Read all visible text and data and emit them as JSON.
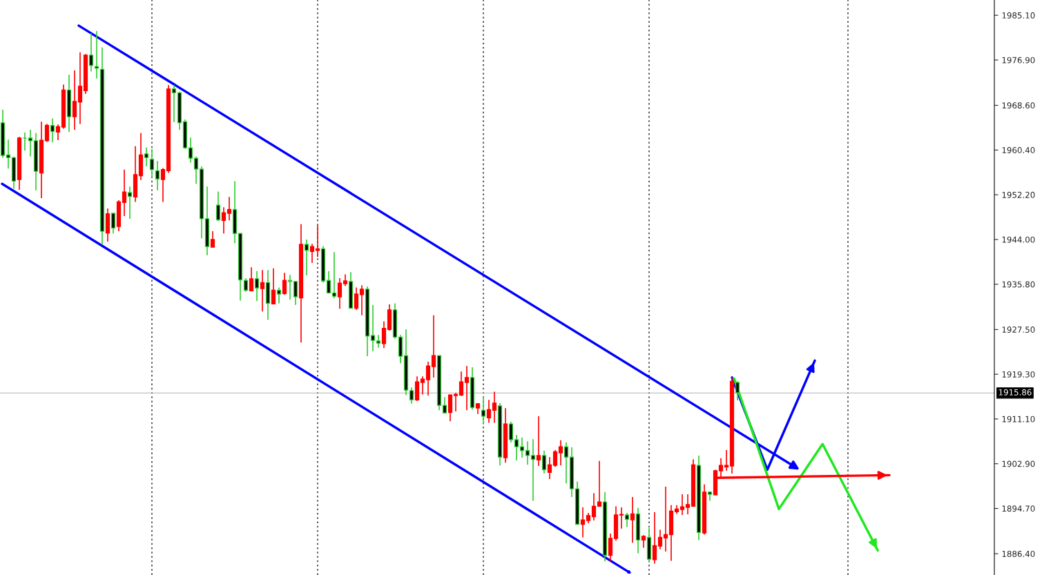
{
  "chart_data": {
    "type": "candlestick",
    "categories": [
      null,
      null,
      null,
      null,
      null,
      null,
      null,
      null,
      null,
      null,
      null,
      null,
      null,
      null,
      null,
      null,
      null,
      null,
      null,
      null,
      null,
      null,
      null,
      null,
      null,
      null,
      null,
      null,
      null,
      null,
      null,
      null,
      null,
      null,
      null,
      null,
      null,
      null,
      null,
      null,
      null,
      null,
      null,
      null,
      null,
      null,
      null,
      null,
      null,
      null,
      null,
      null,
      null,
      null,
      null,
      null,
      null,
      null,
      null,
      null,
      null,
      null,
      null,
      null,
      null,
      null,
      null,
      null,
      null,
      null,
      null,
      null,
      null,
      null,
      null,
      null,
      null,
      null,
      null,
      null,
      null,
      null,
      null,
      null,
      null,
      null,
      null,
      null,
      null,
      null,
      null,
      null,
      null,
      null,
      null,
      null,
      null,
      null,
      null,
      null,
      null,
      null,
      null,
      null,
      null,
      null,
      null,
      null,
      null,
      null,
      null,
      null,
      null,
      null,
      null,
      null,
      null,
      null,
      null,
      null,
      null,
      null,
      null,
      null,
      null,
      null,
      null,
      null,
      null,
      null,
      null,
      null,
      null,
      null,
      null,
      null,
      null,
      null,
      null,
      null,
      null,
      null,
      null,
      null,
      null,
      null,
      null,
      null,
      null,
      null,
      null,
      null,
      null,
      null,
      null,
      null,
      null,
      null,
      null,
      null,
      null,
      null,
      null,
      null,
      null,
      null,
      null,
      null,
      null,
      null,
      null,
      null,
      null,
      null,
      null,
      null,
      null,
      null,
      null,
      null
    ],
    "ohlc": [
      [
        1965.4,
        1967.8,
        1959.0,
        1959.4
      ],
      [
        1959.5,
        1962.3,
        1957.0,
        1959.0
      ],
      [
        1959.0,
        1959.2,
        1953.3,
        1954.7
      ],
      [
        1955.0,
        1962.8,
        1953.1,
        1962.6
      ],
      [
        1962.6,
        1963.6,
        1960.3,
        1962.6
      ],
      [
        1962.6,
        1964.1,
        1959.2,
        1962.1
      ],
      [
        1962.1,
        1963.5,
        1953.0,
        1956.5
      ],
      [
        1956.2,
        1965.6,
        1951.6,
        1962.2
      ],
      [
        1962.1,
        1965.2,
        1961.9,
        1964.9
      ],
      [
        1964.9,
        1966.2,
        1961.8,
        1963.8
      ],
      [
        1963.7,
        1965.1,
        1962.2,
        1964.7
      ],
      [
        1964.6,
        1972.4,
        1964.3,
        1971.4
      ],
      [
        1971.4,
        1974.2,
        1963.7,
        1966.5
      ],
      [
        1966.5,
        1975.0,
        1964.1,
        1969.3
      ],
      [
        1969.2,
        1978.3,
        1965.2,
        1972.1
      ],
      [
        1971.3,
        1978.0,
        1970.7,
        1977.8
      ],
      [
        1977.8,
        1981.8,
        1974.8,
        1975.9
      ],
      [
        1975.7,
        1982.2,
        1973.5,
        1975.4
      ],
      [
        1975.2,
        1979.2,
        1943.0,
        1945.5
      ],
      [
        1945.2,
        1949.7,
        1943.6,
        1948.7
      ],
      [
        1948.8,
        1948.9,
        1945.1,
        1946.1
      ],
      [
        1946.4,
        1951.2,
        1945.5,
        1950.9
      ],
      [
        1950.8,
        1956.8,
        1948.3,
        1952.7
      ],
      [
        1952.6,
        1953.7,
        1947.8,
        1951.9
      ],
      [
        1951.8,
        1961.1,
        1950.9,
        1955.9
      ],
      [
        1955.7,
        1963.5,
        1954.9,
        1959.5
      ],
      [
        1959.7,
        1960.9,
        1957.4,
        1959.0
      ],
      [
        1958.7,
        1960.6,
        1955.4,
        1956.8
      ],
      [
        1956.6,
        1958.4,
        1953.0,
        1955.1
      ],
      [
        1955.0,
        1957.1,
        1950.9,
        1956.8
      ],
      [
        1956.6,
        1972.3,
        1956.2,
        1971.6
      ],
      [
        1971.6,
        1972.3,
        1965.5,
        1970.9
      ],
      [
        1970.9,
        1971.1,
        1964.1,
        1965.4
      ],
      [
        1965.6,
        1966.0,
        1960.6,
        1960.8
      ],
      [
        1960.8,
        1962.7,
        1958.1,
        1958.9
      ],
      [
        1958.9,
        1959.2,
        1954.2,
        1956.9
      ],
      [
        1956.9,
        1957.4,
        1944.2,
        1947.8
      ],
      [
        1947.8,
        1953.7,
        1941.1,
        1942.7
      ],
      [
        1942.6,
        1945.5,
        1942.6,
        1944.0
      ],
      [
        1950.3,
        1952.8,
        1947.4,
        1947.6
      ],
      [
        1947.5,
        1949.9,
        1945.1,
        1948.9
      ],
      [
        1948.8,
        1951.8,
        1947.5,
        1949.5
      ],
      [
        1949.5,
        1954.7,
        1943.3,
        1945.1
      ],
      [
        1945.1,
        1945.2,
        1932.8,
        1936.6
      ],
      [
        1936.5,
        1936.9,
        1934.4,
        1934.7
      ],
      [
        1934.6,
        1938.9,
        1934.5,
        1936.8
      ],
      [
        1936.8,
        1938.2,
        1932.7,
        1935.1
      ],
      [
        1935.0,
        1938.4,
        1930.8,
        1936.1
      ],
      [
        1936.1,
        1938.4,
        1929.3,
        1932.3
      ],
      [
        1932.2,
        1938.7,
        1932.1,
        1934.7
      ],
      [
        1934.7,
        1935.2,
        1932.3,
        1934.0
      ],
      [
        1934.1,
        1937.9,
        1933.9,
        1936.5
      ],
      [
        1936.5,
        1937.5,
        1933.0,
        1936.3
      ],
      [
        1936.3,
        1936.4,
        1932.0,
        1933.5
      ],
      [
        1933.3,
        1946.8,
        1925.1,
        1943.1
      ],
      [
        1943.1,
        1944.0,
        1937.4,
        1942.0
      ],
      [
        1941.8,
        1943.2,
        1939.7,
        1942.7
      ],
      [
        1942.0,
        1946.6,
        1940.8,
        1942.3
      ],
      [
        1942.3,
        1942.8,
        1936.1,
        1936.4
      ],
      [
        1936.5,
        1938.2,
        1934.1,
        1934.2
      ],
      [
        1934.2,
        1941.7,
        1933.2,
        1933.6
      ],
      [
        1933.5,
        1936.9,
        1931.3,
        1936.0
      ],
      [
        1935.9,
        1937.6,
        1935.5,
        1936.4
      ],
      [
        1936.3,
        1938.0,
        1931.3,
        1931.4
      ],
      [
        1931.4,
        1935.2,
        1931.1,
        1934.0
      ],
      [
        1933.9,
        1935.6,
        1930.1,
        1934.9
      ],
      [
        1934.9,
        1935.4,
        1922.6,
        1926.3
      ],
      [
        1926.4,
        1932.0,
        1923.5,
        1925.5
      ],
      [
        1925.4,
        1926.5,
        1924.2,
        1925.0
      ],
      [
        1924.9,
        1929.0,
        1924.1,
        1927.7
      ],
      [
        1927.5,
        1932.1,
        1927.3,
        1931.1
      ],
      [
        1931.1,
        1932.3,
        1925.8,
        1926.1
      ],
      [
        1926.1,
        1926.5,
        1921.3,
        1922.6
      ],
      [
        1922.7,
        1927.5,
        1915.5,
        1916.4
      ],
      [
        1916.3,
        1916.9,
        1913.9,
        1914.6
      ],
      [
        1914.6,
        1918.9,
        1914.4,
        1917.9
      ],
      [
        1917.8,
        1918.9,
        1915.6,
        1918.4
      ],
      [
        1918.3,
        1921.6,
        1915.4,
        1920.8
      ],
      [
        1920.7,
        1930.1,
        1918.7,
        1922.7
      ],
      [
        1922.7,
        1922.8,
        1912.7,
        1913.6
      ],
      [
        1913.6,
        1915.1,
        1912.1,
        1912.2
      ],
      [
        1912.3,
        1915.6,
        1910.7,
        1915.5
      ],
      [
        1915.4,
        1915.9,
        1912.5,
        1915.6
      ],
      [
        1915.5,
        1919.8,
        1915.3,
        1917.9
      ],
      [
        1917.8,
        1920.8,
        1912.7,
        1918.7
      ],
      [
        1918.7,
        1920.6,
        1912.8,
        1913.2
      ],
      [
        1913.1,
        1914.0,
        1912.0,
        1913.9
      ],
      [
        1912.7,
        1915.1,
        1910.1,
        1911.6
      ],
      [
        1911.3,
        1914.6,
        1910.4,
        1912.8
      ],
      [
        1912.7,
        1916.1,
        1910.4,
        1914.0
      ],
      [
        1913.5,
        1914.0,
        1902.6,
        1904.1
      ],
      [
        1904.0,
        1913.1,
        1903.1,
        1910.2
      ],
      [
        1910.2,
        1910.6,
        1906.8,
        1907.3
      ],
      [
        1907.3,
        1908.2,
        1903.5,
        1906.0
      ],
      [
        1906.0,
        1907.7,
        1904.0,
        1905.3
      ],
      [
        1905.3,
        1907.0,
        1902.7,
        1904.4
      ],
      [
        1904.4,
        1907.4,
        1896.1,
        1903.7
      ],
      [
        1903.6,
        1911.6,
        1902.5,
        1904.4
      ],
      [
        1904.4,
        1905.3,
        1901.1,
        1901.8
      ],
      [
        1901.3,
        1904.1,
        1900.1,
        1902.7
      ],
      [
        1902.6,
        1905.4,
        1902.3,
        1905.1
      ],
      [
        1904.9,
        1907.2,
        1902.6,
        1906.0
      ],
      [
        1906.0,
        1906.8,
        1899.3,
        1904.1
      ],
      [
        1904.1,
        1905.9,
        1896.8,
        1898.3
      ],
      [
        1898.3,
        1899.6,
        1891.7,
        1891.8
      ],
      [
        1891.8,
        1894.9,
        1889.4,
        1892.6
      ],
      [
        1892.5,
        1893.9,
        1892.0,
        1893.4
      ],
      [
        1893.2,
        1897.5,
        1892.5,
        1895.1
      ],
      [
        1895.1,
        1903.4,
        1895.0,
        1895.9
      ],
      [
        1895.9,
        1897.7,
        1885.0,
        1886.1
      ],
      [
        1886.1,
        1890.1,
        1885.1,
        1889.2
      ],
      [
        1889.2,
        1895.1,
        1888.8,
        1893.5
      ],
      [
        1893.5,
        1894.9,
        1891.0,
        1893.6
      ],
      [
        1893.5,
        1893.9,
        1891.3,
        1892.7
      ],
      [
        1892.6,
        1896.8,
        1888.4,
        1893.7
      ],
      [
        1893.7,
        1894.8,
        1886.5,
        1888.9
      ],
      [
        1888.9,
        1889.8,
        1887.5,
        1889.6
      ],
      [
        1889.4,
        1891.1,
        1884.8,
        1885.4
      ],
      [
        1885.3,
        1894.0,
        1884.6,
        1887.9
      ],
      [
        1887.8,
        1890.8,
        1887.2,
        1889.4
      ],
      [
        1889.3,
        1898.7,
        1886.8,
        1889.9
      ],
      [
        1889.9,
        1895.3,
        1885.1,
        1894.2
      ],
      [
        1894.1,
        1895.3,
        1893.7,
        1894.6
      ],
      [
        1894.5,
        1897.3,
        1893.5,
        1895.0
      ],
      [
        1894.9,
        1897.3,
        1893.6,
        1895.4
      ],
      [
        1895.1,
        1903.7,
        1895.0,
        1902.7
      ],
      [
        1902.6,
        1904.4,
        1888.9,
        1890.3
      ],
      [
        1890.2,
        1899.1,
        1889.9,
        1897.7
      ],
      [
        1897.7,
        1897.8,
        1896.1,
        1897.3
      ],
      [
        1897.2,
        1901.8,
        1897.1,
        1901.6
      ],
      [
        1901.6,
        1903.9,
        1900.3,
        1902.6
      ],
      [
        1902.3,
        1905.4,
        1901.6,
        1902.6
      ],
      [
        1902.5,
        1918.7,
        1901.1,
        1918.0
      ],
      [
        1917.8,
        1918.0,
        1914.5,
        1915.9
      ],
      null,
      null,
      null,
      null,
      null,
      null,
      null,
      null,
      null,
      null,
      null,
      null,
      null,
      null,
      null,
      null,
      null,
      null,
      null,
      null,
      null,
      null,
      null,
      null,
      null,
      null,
      null,
      null,
      null,
      null,
      null,
      null,
      null,
      null,
      null,
      null,
      null,
      null,
      null,
      null,
      null,
      null,
      null,
      null,
      null,
      null
    ],
    "ylim": [
      1882.5,
      1987.9
    ],
    "yticks": [
      {
        "value": 1985.1,
        "label": "1985.10"
      },
      {
        "value": 1976.9,
        "label": "1976.90"
      },
      {
        "value": 1968.6,
        "label": "1968.60"
      },
      {
        "value": 1960.4,
        "label": "1960.40"
      },
      {
        "value": 1952.2,
        "label": "1952.20"
      },
      {
        "value": 1944.0,
        "label": "1944.00"
      },
      {
        "value": 1935.8,
        "label": "1935.80"
      },
      {
        "value": 1927.5,
        "label": "1927.50"
      },
      {
        "value": 1919.3,
        "label": "1919.30"
      },
      {
        "value": 1911.1,
        "label": "1911.10"
      },
      {
        "value": 1902.9,
        "label": "1902.90"
      },
      {
        "value": 1894.7,
        "label": "1894.70"
      },
      {
        "value": 1886.4,
        "label": "1886.40"
      }
    ],
    "ref_lines": [
      {
        "axis": "y",
        "value": 1915.86,
        "label": "1915.86",
        "color": "#c0c0c0"
      }
    ],
    "tick_labels": "y"
  }
}
